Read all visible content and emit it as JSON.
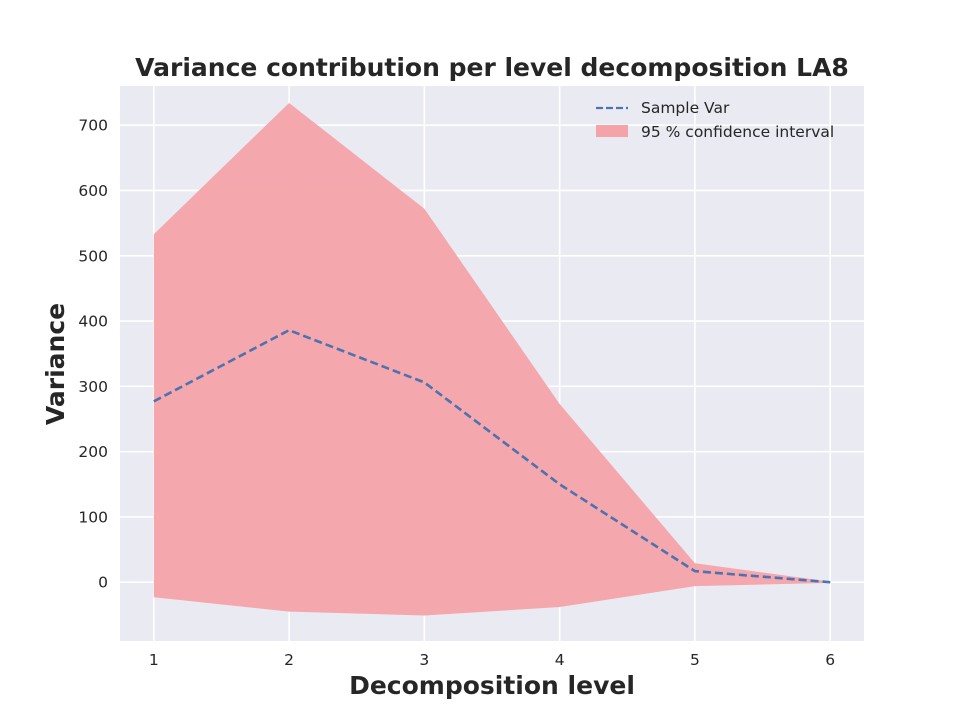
{
  "chart_data": {
    "type": "line",
    "title": "Variance contribution per level decomposition LA8",
    "xlabel": "Decomposition level",
    "ylabel": "Variance",
    "x": [
      1,
      2,
      3,
      4,
      5,
      6
    ],
    "xlim": [
      0.75,
      6.25
    ],
    "ylim": [
      -90,
      760
    ],
    "xticks": [
      1,
      2,
      3,
      4,
      5,
      6
    ],
    "yticks": [
      0,
      100,
      200,
      300,
      400,
      500,
      600,
      700
    ],
    "grid": true,
    "legend_position": "top-right",
    "series": [
      {
        "name": "Sample Var",
        "style": "dashed",
        "color": "#4c72b0",
        "values": [
          277,
          386,
          306,
          150,
          17,
          0
        ]
      }
    ],
    "band": {
      "name": "95 % confidence interval",
      "color": "#f4a3a8",
      "lower": [
        -23,
        -45,
        -51,
        -38,
        -6,
        -1
      ],
      "upper": [
        533,
        734,
        572,
        273,
        29,
        1
      ]
    }
  },
  "colors": {
    "plot_background": "#eaeaf2",
    "grid": "#ffffff",
    "text": "#262626"
  }
}
